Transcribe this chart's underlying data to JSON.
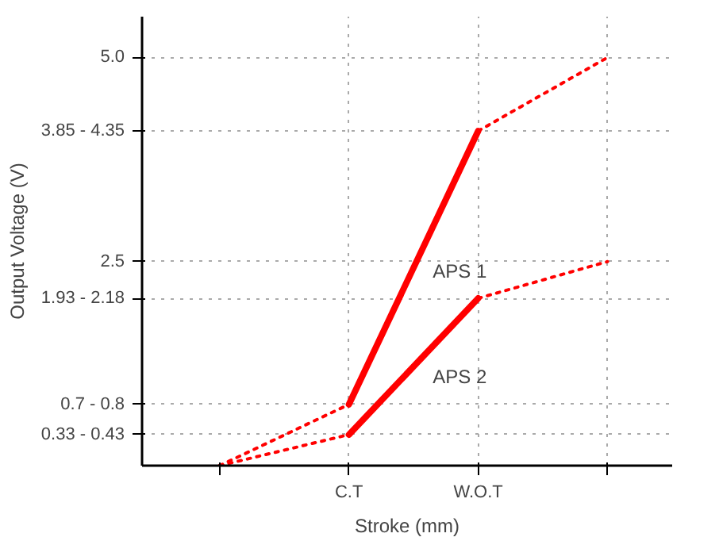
{
  "chart_data": {
    "type": "line",
    "xlabel": "Stroke (mm)",
    "ylabel": "Output Voltage (V)",
    "categories": [
      null,
      "C.T",
      "W.O.T",
      null
    ],
    "ylim": [
      0,
      5.5
    ],
    "yticks": [
      {
        "value": 0.38,
        "label": "0.33 - 0.43"
      },
      {
        "value": 0.75,
        "label": "0.7 - 0.8"
      },
      {
        "value": 2.05,
        "label": "1.93 - 2.18"
      },
      {
        "value": 2.5,
        "label": "2.5"
      },
      {
        "value": 4.1,
        "label": "3.85 - 4.35"
      },
      {
        "value": 5.0,
        "label": "5.0"
      }
    ],
    "grid": true,
    "series": [
      {
        "name": "APS 1",
        "color": "#ff0000",
        "values": [
          null,
          0.75,
          4.1,
          null
        ],
        "line_style": "solid"
      },
      {
        "name": "APS 2",
        "color": "#ff0000",
        "values": [
          null,
          0.38,
          2.05,
          null
        ],
        "line_style": "solid"
      },
      {
        "color": "#ff0000",
        "values": [
          0,
          0.75,
          null,
          null
        ],
        "line_style": "dotted"
      },
      {
        "color": "#ff0000",
        "values": [
          null,
          null,
          4.1,
          5.0
        ],
        "line_style": "dotted"
      },
      {
        "color": "#ff0000",
        "values": [
          0,
          0.38,
          null,
          null
        ],
        "line_style": "dotted"
      },
      {
        "color": "#ff0000",
        "values": [
          null,
          null,
          2.05,
          2.5
        ],
        "line_style": "dotted"
      }
    ]
  }
}
